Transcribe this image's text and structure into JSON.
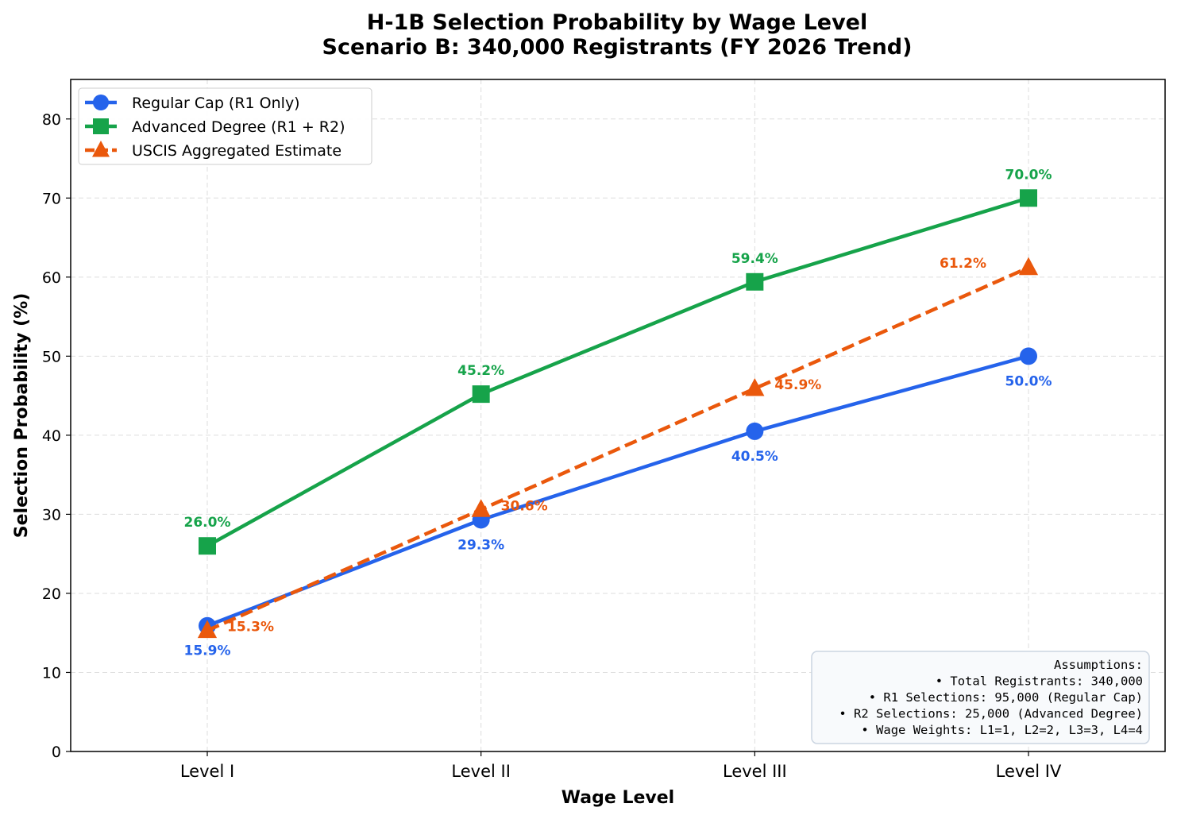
{
  "chart_data": {
    "type": "line",
    "title": "H-1B Selection Probability by Wage Level",
    "subtitle": "Scenario B: 340,000 Registrants (FY 2026 Trend)",
    "xlabel": "Wage Level",
    "ylabel": "Selection Probability (%)",
    "categories": [
      "Level I",
      "Level II",
      "Level III",
      "Level IV"
    ],
    "ylim": [
      0,
      85
    ],
    "yticks": [
      0,
      10,
      20,
      30,
      40,
      50,
      60,
      70,
      80
    ],
    "grid": true,
    "legend_placement": "top-left",
    "series": [
      {
        "name": "Regular Cap (R1 Only)",
        "values": [
          15.9,
          29.3,
          40.5,
          50.0
        ],
        "labels": [
          "15.9%",
          "29.3%",
          "40.5%",
          "50.0%"
        ],
        "color": "#2563eb",
        "marker": "circle",
        "linestyle": "solid"
      },
      {
        "name": "Advanced Degree (R1 + R2)",
        "values": [
          26.0,
          45.2,
          59.4,
          70.0
        ],
        "labels": [
          "26.0%",
          "45.2%",
          "59.4%",
          "70.0%"
        ],
        "color": "#16a34a",
        "marker": "square",
        "linestyle": "solid"
      },
      {
        "name": "USCIS Aggregated Estimate",
        "values": [
          15.3,
          30.6,
          45.9,
          61.2
        ],
        "labels": [
          "15.3%",
          "30.6%",
          "45.9%",
          "61.2%"
        ],
        "color": "#ea580c",
        "marker": "triangle",
        "linestyle": "dashed"
      }
    ],
    "annotation": {
      "title": "Assumptions:",
      "lines": [
        "• Total Registrants: 340,000",
        "• R1 Selections: 95,000 (Regular Cap)",
        "• R2 Selections: 25,000 (Advanced Degree)",
        "• Wage Weights: L1=1, L2=2, L3=3, L4=4"
      ],
      "placement": "bottom-right"
    }
  }
}
